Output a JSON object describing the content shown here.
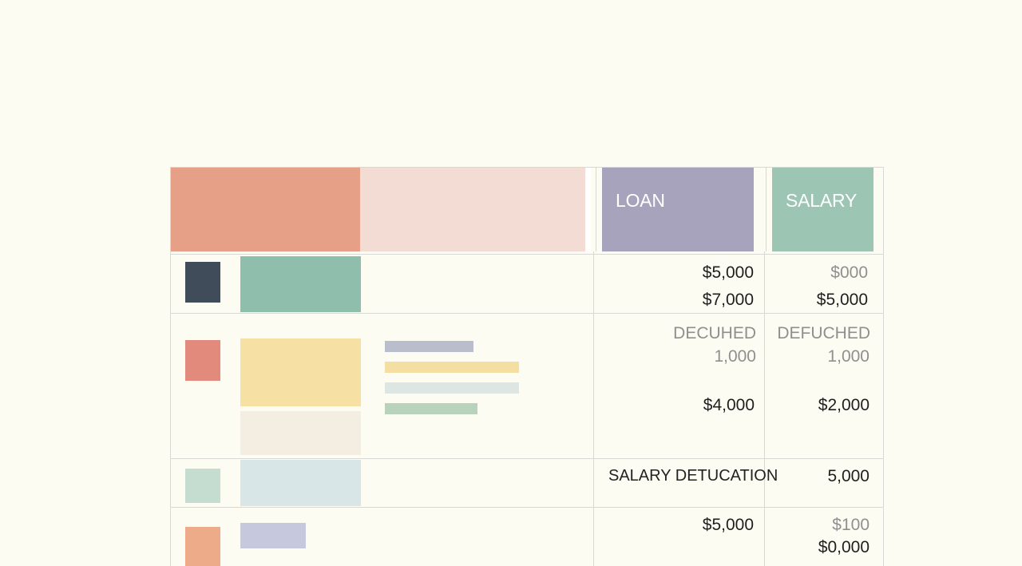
{
  "header": {
    "loan_label": "LOAN",
    "salary_label": "SALARY"
  },
  "colors": {
    "background": "#fdfcf3",
    "header_coral": "#e6a088",
    "header_pink": "#f2dcd3",
    "header_loan": "#a7a3bd",
    "header_salary": "#9cc6b3",
    "grid": "#d8d8d4"
  },
  "rows": [
    {
      "loan": [
        "$5,000",
        "$7,000"
      ],
      "salary": [
        "$000",
        "$5,000"
      ]
    },
    {
      "loan_label": "DECUHED",
      "loan_sub": "1,000",
      "loan_total": "$4,000",
      "salary_label": "DEFUCHED",
      "salary_sub": "1,000",
      "salary_total": "$2,000"
    },
    {
      "label": "SALARY DETUCATION",
      "salary": "5,000"
    },
    {
      "loan": "$5,000",
      "salary": [
        "$100",
        "$0,000"
      ]
    }
  ]
}
